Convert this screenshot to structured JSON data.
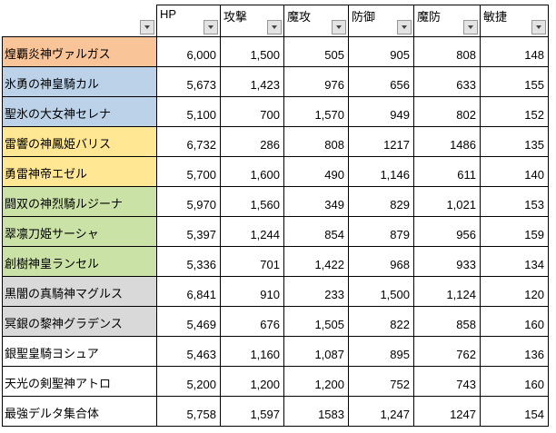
{
  "table": {
    "corner_header": "",
    "columns": [
      {
        "label": "HP"
      },
      {
        "label": "攻撃"
      },
      {
        "label": "魔攻"
      },
      {
        "label": "防御"
      },
      {
        "label": "魔防"
      },
      {
        "label": "敏捷"
      }
    ],
    "rows": [
      {
        "name": "煌覇炎神ヴァルガス",
        "row_color": "#F9C498",
        "values": [
          "6,000",
          "1,500",
          "505",
          "905",
          "808",
          "148"
        ]
      },
      {
        "name": "氷勇の神皇騎カル",
        "row_color": "#BCD2E8",
        "values": [
          "5,673",
          "1,423",
          "976",
          "656",
          "633",
          "155"
        ]
      },
      {
        "name": "聖氷の大女神セレナ",
        "row_color": "#BCD2E8",
        "values": [
          "5,100",
          "700",
          "1,570",
          "949",
          "802",
          "152"
        ]
      },
      {
        "name": "雷響の神鳳姫バリス",
        "row_color": "#FFE794",
        "values": [
          "6,732",
          "286",
          "808",
          "1217",
          "1486",
          "135"
        ]
      },
      {
        "name": "勇雷神帝エゼル",
        "row_color": "#FFE794",
        "values": [
          "5,700",
          "1,600",
          "490",
          "1,146",
          "611",
          "140"
        ]
      },
      {
        "name": "闘双の神烈騎ルジーナ",
        "row_color": "#CBE2A7",
        "values": [
          "5,970",
          "1,560",
          "349",
          "829",
          "1,021",
          "153"
        ]
      },
      {
        "name": "翠凛刀姫サーシャ",
        "row_color": "#CBE2A7",
        "values": [
          "5,397",
          "1,244",
          "854",
          "879",
          "956",
          "159"
        ]
      },
      {
        "name": "創樹神皇ランセル",
        "row_color": "#CBE2A7",
        "values": [
          "5,336",
          "701",
          "1,422",
          "968",
          "933",
          "134"
        ]
      },
      {
        "name": "黒闇の真騎神マグルス",
        "row_color": "#D9D9D9",
        "values": [
          "6,841",
          "910",
          "233",
          "1,500",
          "1,124",
          "120"
        ]
      },
      {
        "name": "冥銀の黎神グラデンス",
        "row_color": "#D9D9D9",
        "values": [
          "5,469",
          "676",
          "1,505",
          "822",
          "858",
          "160"
        ]
      },
      {
        "name": "銀聖皇騎ヨシュア",
        "row_color": "#FFFFFF",
        "values": [
          "5,463",
          "1,160",
          "1,087",
          "895",
          "762",
          "136"
        ]
      },
      {
        "name": "天光の剣聖神アトロ",
        "row_color": "#FFFFFF",
        "values": [
          "5,200",
          "1,200",
          "1,200",
          "752",
          "743",
          "160"
        ]
      },
      {
        "name": "最強デルタ集合体",
        "row_color": "#FFFFFF",
        "values": [
          "5,758",
          "1,597",
          "1583",
          "1,247",
          "1247",
          "154"
        ]
      }
    ]
  },
  "colors": {
    "border": "#000000",
    "dropdown_bg": "#E3E3E3",
    "dropdown_border": "#979797",
    "dropdown_arrow": "#444444"
  }
}
